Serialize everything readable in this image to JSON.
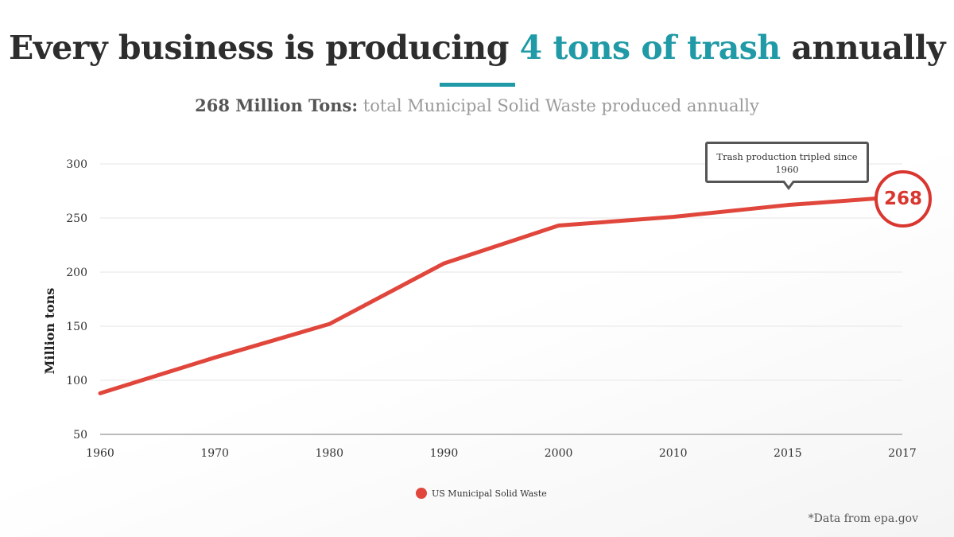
{
  "title": {
    "prefix": "Every business is producing ",
    "highlight": "4 tons of trash",
    "suffix": " annually"
  },
  "subtitle": {
    "strong": "268 Million Tons:",
    "rest": " total Municipal Solid Waste produced annually"
  },
  "colors": {
    "accent": "#1f9aa6",
    "series": "#e0463b",
    "badge": "#d9362f"
  },
  "chart_data": {
    "type": "line",
    "categories": [
      "1960",
      "1970",
      "1980",
      "1990",
      "2000",
      "2010",
      "2015",
      "2017"
    ],
    "series": [
      {
        "name": "US Municipal Solid Waste",
        "values": [
          88,
          121,
          152,
          208,
          243,
          251,
          262,
          268
        ]
      }
    ],
    "ylabel": "Million tons",
    "ylim": [
      50,
      300
    ],
    "yticks": [
      50,
      100,
      150,
      200,
      250,
      300
    ],
    "grid": true,
    "legend": "bottom-center",
    "annotation": "Trash production tripled since 1960",
    "end_label": "268"
  },
  "source": "*Data from epa.gov"
}
